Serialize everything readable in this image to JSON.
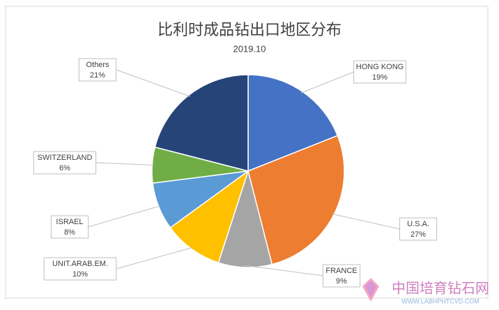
{
  "chart_data": {
    "type": "pie",
    "title": "比利时成品钻出口地区分布",
    "subtitle": "2019.10",
    "categories": [
      "HONG KONG",
      "U.S.A.",
      "FRANCE",
      "UNIT.ARAB.EM.",
      "ISRAEL",
      "SWITZERLAND",
      "Others"
    ],
    "values": [
      19,
      27,
      9,
      10,
      8,
      6,
      21
    ],
    "value_labels": [
      "19%",
      "27%",
      "9%",
      "10%",
      "8%",
      "6%",
      "21%"
    ],
    "colors": [
      "#4472c4",
      "#ed7d31",
      "#a5a5a5",
      "#ffc000",
      "#5b9bd5",
      "#70ad47",
      "#264478"
    ]
  },
  "watermark": {
    "title": "中国培育钻石网",
    "url": "WWW.LABHPHTCVD.COM"
  }
}
